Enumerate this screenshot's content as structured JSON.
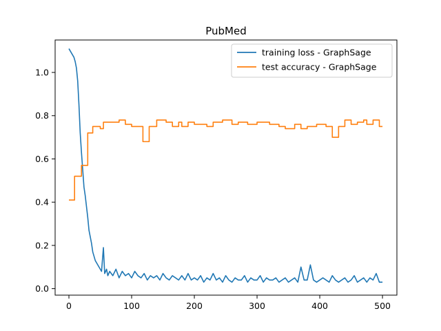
{
  "chart_data": {
    "type": "line",
    "title": "PubMed",
    "xlabel": "",
    "ylabel": "",
    "xlim": [
      -22,
      523
    ],
    "ylim": [
      -0.03,
      1.15
    ],
    "xticks": [
      0,
      100,
      200,
      300,
      400,
      500
    ],
    "yticks": [
      0.0,
      0.2,
      0.4,
      0.6,
      0.8,
      1.0
    ],
    "xtick_labels": [
      "0",
      "100",
      "200",
      "300",
      "400",
      "500"
    ],
    "ytick_labels": [
      "0.0",
      "0.2",
      "0.4",
      "0.6",
      "0.8",
      "1.0"
    ],
    "legend_position": "top-right",
    "grid": false,
    "series": [
      {
        "name": "training loss - GraphSage",
        "color": "#1f77b4",
        "style": "line",
        "x": [
          0,
          2,
          4,
          6,
          8,
          10,
          12,
          14,
          16,
          18,
          20,
          22,
          24,
          26,
          28,
          30,
          32,
          34,
          36,
          38,
          40,
          42,
          44,
          46,
          48,
          50,
          52,
          55,
          57,
          60,
          62,
          65,
          70,
          75,
          80,
          85,
          90,
          95,
          100,
          105,
          110,
          115,
          120,
          125,
          130,
          135,
          140,
          145,
          150,
          155,
          160,
          165,
          170,
          175,
          180,
          185,
          190,
          195,
          200,
          205,
          210,
          215,
          220,
          225,
          230,
          235,
          240,
          245,
          250,
          255,
          260,
          265,
          270,
          275,
          280,
          285,
          290,
          295,
          300,
          305,
          310,
          315,
          320,
          325,
          330,
          335,
          340,
          345,
          350,
          355,
          360,
          365,
          370,
          375,
          380,
          385,
          390,
          395,
          400,
          405,
          410,
          415,
          420,
          425,
          430,
          435,
          440,
          445,
          450,
          455,
          460,
          465,
          470,
          475,
          480,
          485,
          490,
          495,
          500
        ],
        "values": [
          1.11,
          1.1,
          1.09,
          1.08,
          1.07,
          1.05,
          1.02,
          0.96,
          0.85,
          0.72,
          0.63,
          0.55,
          0.47,
          0.43,
          0.38,
          0.33,
          0.27,
          0.24,
          0.21,
          0.17,
          0.15,
          0.13,
          0.12,
          0.11,
          0.1,
          0.09,
          0.08,
          0.19,
          0.07,
          0.09,
          0.06,
          0.08,
          0.06,
          0.09,
          0.05,
          0.08,
          0.06,
          0.07,
          0.05,
          0.08,
          0.06,
          0.05,
          0.07,
          0.04,
          0.06,
          0.05,
          0.06,
          0.04,
          0.07,
          0.05,
          0.04,
          0.06,
          0.05,
          0.04,
          0.06,
          0.04,
          0.07,
          0.04,
          0.05,
          0.04,
          0.06,
          0.03,
          0.05,
          0.04,
          0.07,
          0.04,
          0.05,
          0.03,
          0.06,
          0.04,
          0.03,
          0.05,
          0.04,
          0.04,
          0.06,
          0.03,
          0.05,
          0.04,
          0.04,
          0.06,
          0.03,
          0.05,
          0.04,
          0.04,
          0.05,
          0.03,
          0.04,
          0.05,
          0.03,
          0.04,
          0.05,
          0.03,
          0.1,
          0.04,
          0.04,
          0.11,
          0.04,
          0.03,
          0.04,
          0.05,
          0.04,
          0.03,
          0.06,
          0.04,
          0.03,
          0.04,
          0.05,
          0.03,
          0.04,
          0.06,
          0.03,
          0.04,
          0.05,
          0.03,
          0.05,
          0.04,
          0.07,
          0.03,
          0.03
        ]
      },
      {
        "name": "test accuracy - GraphSage",
        "color": "#ff7f0e",
        "style": "step",
        "x": [
          0,
          9,
          20,
          30,
          38,
          50,
          55,
          80,
          90,
          100,
          118,
          128,
          140,
          155,
          165,
          175,
          180,
          190,
          200,
          220,
          230,
          245,
          260,
          270,
          285,
          300,
          320,
          335,
          345,
          360,
          370,
          380,
          395,
          410,
          420,
          430,
          440,
          450,
          460,
          470,
          475,
          485,
          495,
          500
        ],
        "values": [
          0.41,
          0.52,
          0.57,
          0.72,
          0.75,
          0.74,
          0.77,
          0.78,
          0.76,
          0.75,
          0.68,
          0.75,
          0.78,
          0.77,
          0.75,
          0.77,
          0.75,
          0.77,
          0.76,
          0.75,
          0.77,
          0.78,
          0.76,
          0.77,
          0.76,
          0.77,
          0.76,
          0.75,
          0.74,
          0.76,
          0.74,
          0.75,
          0.76,
          0.75,
          0.7,
          0.75,
          0.78,
          0.76,
          0.77,
          0.78,
          0.76,
          0.78,
          0.75,
          0.75
        ]
      }
    ]
  }
}
